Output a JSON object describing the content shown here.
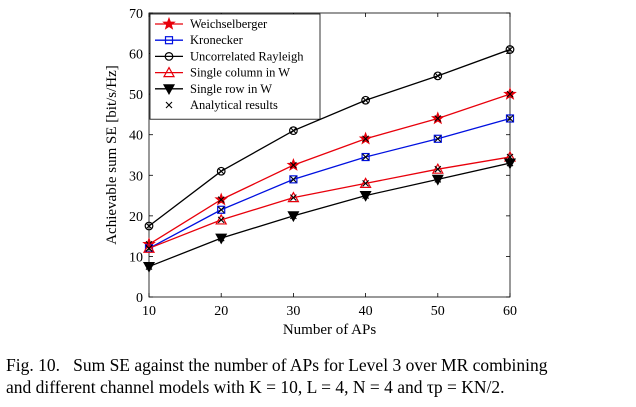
{
  "chart_data": {
    "type": "line",
    "xlabel": "Number of APs",
    "ylabel": "Achievable sum SE [bit/s/Hz]",
    "x": [
      10,
      20,
      30,
      40,
      50,
      60
    ],
    "xlim": [
      10,
      60
    ],
    "ylim": [
      0,
      70
    ],
    "xticks": [
      10,
      20,
      30,
      40,
      50,
      60
    ],
    "yticks": [
      0,
      10,
      20,
      30,
      40,
      50,
      60,
      70
    ],
    "grid": false,
    "legend_position": "top-left",
    "series": [
      {
        "name": "Weichselberger",
        "color": "#e8000b",
        "marker": "star",
        "values": [
          13.0,
          24.0,
          32.5,
          39.0,
          44.0,
          50.0
        ]
      },
      {
        "name": "Kronecker",
        "color": "#0010e0",
        "marker": "square",
        "values": [
          12.0,
          21.5,
          29.0,
          34.5,
          39.0,
          44.0
        ]
      },
      {
        "name": "Uncorrelated Rayleigh",
        "color": "#000000",
        "marker": "circle",
        "values": [
          17.5,
          31.0,
          41.0,
          48.5,
          54.5,
          61.0
        ]
      },
      {
        "name": "Single column in W",
        "color": "#e8000b",
        "marker": "triangle-up",
        "values": [
          12.0,
          19.0,
          24.5,
          28.0,
          31.5,
          34.5
        ]
      },
      {
        "name": "Single row in W",
        "color": "#000000",
        "marker": "triangle-down",
        "values": [
          7.5,
          14.5,
          20.0,
          25.0,
          29.0,
          33.0
        ]
      }
    ],
    "analytical": {
      "name": "Analytical results",
      "marker": "x"
    }
  },
  "caption": {
    "label": "Fig. 10.",
    "line1": "Sum SE against the number of APs for Level 3 over MR combining",
    "line2": "and different channel models with K = 10, L = 4, N = 4 and τp = KN/2."
  },
  "colors": {
    "axis": "#000000",
    "red": "#e8000b",
    "blue": "#0010e0",
    "black": "#000000"
  }
}
